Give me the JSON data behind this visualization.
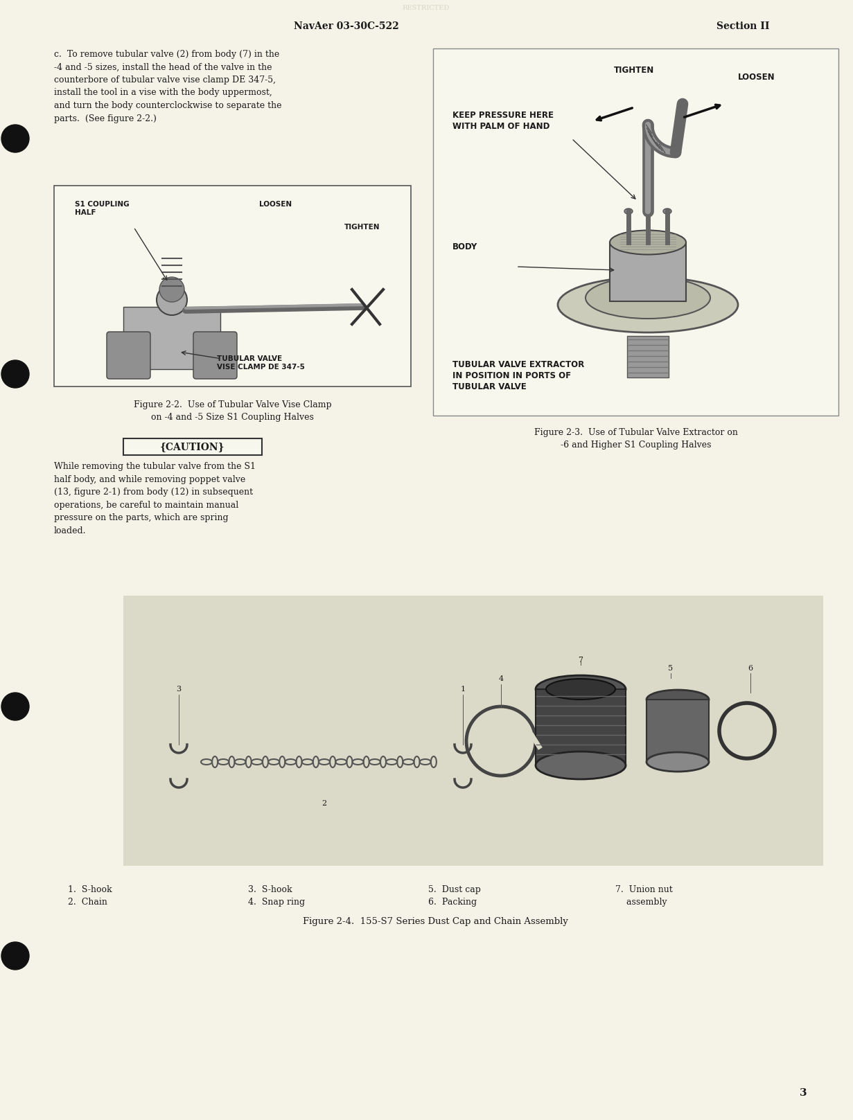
{
  "bg_color": "#f5f3e8",
  "header_left": "NavAer 03-30C-522",
  "header_right": "Section II",
  "page_number": "3",
  "para_c": "c.  To remove tubular valve (2) from body (7) in the\n-4 and -5 sizes, install the head of the valve in the\ncounterbore of tubular valve vise clamp DE 347-5,\ninstall the tool in a vise with the body uppermost,\nand turn the body counterclockwise to separate the\nparts.  (See figure 2-2.)",
  "fig22_caption_line1": "Figure 2-2.  Use of Tubular Valve Vise Clamp",
  "fig22_caption_line2": "on -4 and -5 Size S1 Coupling Halves",
  "fig23_caption_line1": "Figure 2-3.  Use of Tubular Valve Extractor on",
  "fig23_caption_line2": "-6 and Higher S1 Coupling Halves",
  "fig24_caption": "Figure 2-4.  155-S7 Series Dust Cap and Chain Assembly",
  "caution_label": "CAUTION",
  "caution_body": "While removing the tubular valve from the S1\nhalf body, and while removing poppet valve\n(13, figure 2-1) from body (12) in subsequent\noperations, be careful to maintain manual\npressure on the parts, which are spring\nloaded.",
  "items_col1_line1": "1.  S-hook",
  "items_col1_line2": "2.  Chain",
  "items_col2_line1": "3.  S-hook",
  "items_col2_line2": "4.  Snap ring",
  "items_col3_line1": "5.  Dust cap",
  "items_col3_line2": "6.  Packing",
  "items_col4_line1": "7.  Union nut",
  "items_col4_line2": "    assembly",
  "text_color": "#1a1a1a",
  "fig_box_color": "#f8f7ee",
  "fig24_box_color": "#dbd9c8",
  "page_bg": "#f5f3e8"
}
